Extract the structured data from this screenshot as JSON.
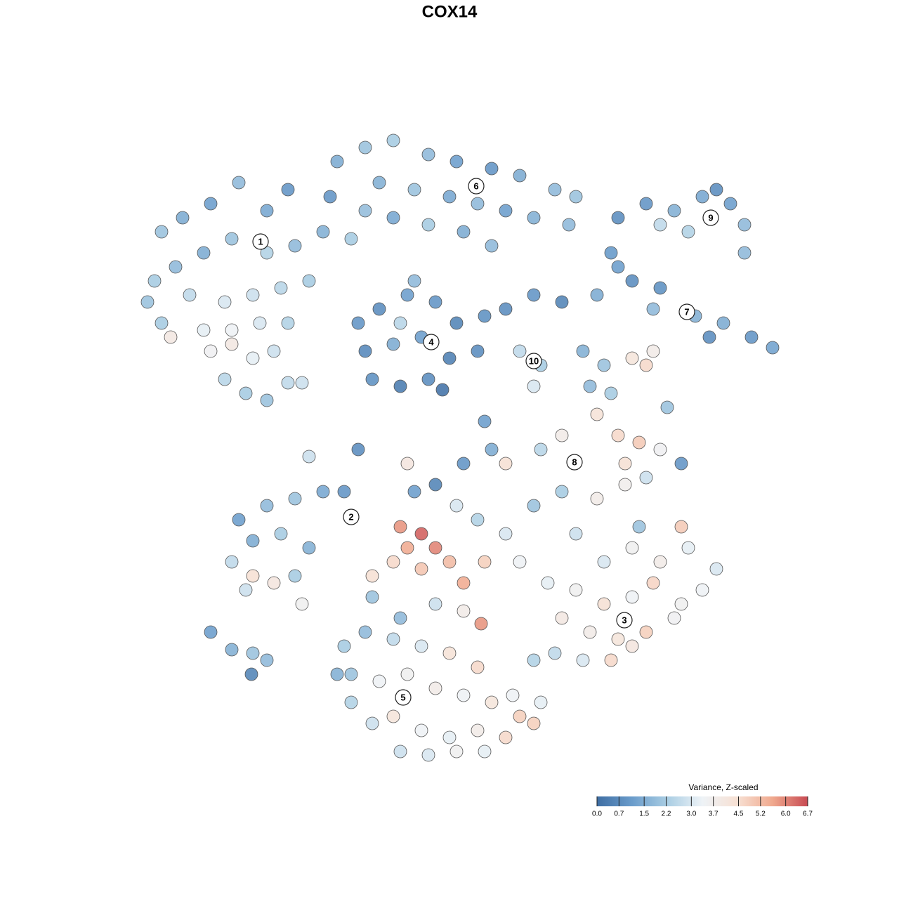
{
  "chart_data": {
    "type": "scatter",
    "title": "COX14",
    "xlim": [
      0,
      128
    ],
    "ylim": [
      0,
      128
    ],
    "series": [
      {
        "name": null,
        "x": [
          23,
          26,
          30,
          34,
          38,
          41,
          22,
          25,
          29,
          33,
          38,
          42,
          46,
          50,
          21,
          27,
          32,
          36,
          40,
          44,
          23,
          29,
          33,
          37,
          41,
          30,
          33,
          36,
          39,
          32,
          35,
          38,
          41,
          24.3,
          43,
          48,
          52,
          56,
          61,
          65,
          70,
          74,
          79,
          82,
          54,
          59,
          64,
          68,
          72,
          76,
          81,
          56,
          61,
          66,
          70,
          47,
          52,
          51,
          54,
          58,
          62,
          65,
          52,
          56,
          60,
          64,
          53,
          57,
          61,
          63,
          59,
          68,
          69,
          57,
          72,
          76,
          80,
          85,
          88,
          90,
          94,
          99,
          103,
          107,
          110,
          101,
          93,
          87,
          88,
          92,
          96,
          100,
          104,
          106,
          98,
          94,
          106,
          102,
          74,
          77,
          76,
          83,
          86,
          84,
          87,
          90,
          92,
          93,
          85,
          88,
          91,
          94,
          97,
          80,
          77,
          89,
          92,
          95,
          89,
          34,
          38,
          42,
          46,
          49,
          36,
          40,
          44,
          33,
          36,
          39,
          42,
          35,
          43,
          30,
          33,
          36,
          38,
          35.8,
          44,
          51,
          57,
          60,
          62,
          58,
          56,
          60,
          64,
          66,
          69,
          53,
          59,
          62,
          66,
          70,
          72,
          69,
          65,
          68,
          58,
          68.5,
          53,
          57,
          62,
          66,
          72,
          76,
          80,
          74,
          78,
          82,
          86,
          90,
          94,
          98,
          102,
          82,
          86,
          90,
          93,
          97,
          80,
          84,
          88,
          92,
          96,
          79,
          83,
          87,
          90,
          76,
          97,
          91,
          100,
          85,
          49,
          52,
          56,
          60,
          64,
          68,
          50,
          54,
          58,
          62,
          66,
          70,
          74,
          76,
          50,
          53,
          56,
          60,
          64,
          68,
          72,
          57,
          61,
          65,
          69,
          48,
          73,
          77
        ],
        "y": [
          95,
          97,
          99,
          102,
          98,
          101,
          88,
          90,
          92,
          94,
          92,
          93,
          95,
          94,
          85,
          86,
          85,
          86,
          87,
          88,
          82,
          81,
          81,
          82,
          82,
          78,
          79,
          77,
          78,
          74,
          72,
          71,
          73.5,
          80,
          73.5,
          105,
          107,
          108,
          106,
          105,
          104,
          103,
          101,
          100,
          102,
          101,
          100,
          99,
          98,
          97,
          96,
          97,
          96,
          95,
          93,
          100,
          98,
          82,
          84,
          86,
          85,
          82,
          78,
          79,
          80,
          77,
          74,
          73,
          74,
          72.5,
          88,
          78,
          83,
          82,
          84,
          86,
          85,
          86,
          90,
          88,
          87,
          83,
          82,
          80,
          78.5,
          80,
          84,
          92,
          97,
          99,
          98,
          100,
          99,
          96,
          95,
          96,
          92,
          101,
          78,
          76,
          73,
          78,
          76,
          73,
          72,
          77,
          76,
          78,
          69,
          66,
          65,
          64,
          62,
          66,
          64,
          62,
          60,
          70,
          59,
          54,
          56,
          57,
          58,
          58,
          51,
          52,
          50,
          48,
          46,
          45,
          46,
          44,
          42,
          38,
          35.5,
          35,
          34,
          32,
          63,
          64,
          53,
          52,
          50,
          50,
          48,
          47,
          48,
          45,
          48,
          46,
          58,
          59,
          62,
          64,
          62,
          68,
          56,
          54,
          62,
          39.2,
          43,
          40,
          42,
          41,
          52,
          56,
          58,
          48,
          45,
          52,
          48,
          50,
          48,
          50,
          47,
          44,
          42,
          43,
          45,
          42,
          40,
          38,
          37,
          38,
          40,
          35,
          34,
          34,
          36,
          34,
          53,
          53,
          44,
          57,
          36,
          38,
          37,
          36,
          35,
          33,
          32,
          31,
          32,
          30,
          29,
          28,
          26,
          25,
          28,
          25,
          26,
          24,
          23,
          24,
          23,
          21,
          20.5,
          21,
          21,
          32,
          29,
          28
        ],
        "values": [
          2.0,
          1.5,
          1.2,
          1.8,
          1.4,
          1.0,
          2.2,
          1.8,
          1.5,
          2.0,
          2.4,
          1.8,
          1.6,
          2.2,
          2.0,
          2.6,
          3.0,
          2.8,
          2.5,
          2.2,
          2.2,
          3.2,
          3.4,
          3.0,
          2.4,
          3.5,
          4.0,
          3.2,
          2.8,
          2.5,
          2.2,
          2.0,
          2.6,
          4.0,
          2.8,
          1.5,
          2.0,
          2.2,
          1.8,
          1.2,
          1.0,
          1.5,
          1.8,
          2.0,
          1.6,
          2.0,
          1.4,
          1.8,
          1.2,
          1.6,
          1.8,
          1.4,
          2.2,
          1.5,
          1.8,
          1.0,
          1.9,
          1.0,
          0.8,
          1.2,
          1.0,
          0.6,
          0.7,
          1.5,
          1.2,
          0.5,
          0.9,
          0.4,
          0.8,
          0.2,
          1.8,
          0.8,
          0.9,
          2.5,
          0.8,
          1.0,
          0.6,
          1.5,
          1.2,
          0.8,
          0.9,
          1.6,
          1.5,
          1.0,
          1.3,
          0.8,
          1.8,
          1.1,
          0.8,
          1.0,
          1.6,
          1.4,
          1.2,
          1.8,
          2.4,
          2.6,
          1.8,
          0.8,
          2.6,
          2.2,
          3.0,
          1.6,
          2.0,
          1.8,
          2.2,
          4.2,
          4.6,
          3.8,
          4.3,
          4.6,
          4.9,
          3.5,
          1.0,
          3.8,
          2.5,
          4.4,
          2.8,
          2.0,
          3.7,
          1.2,
          1.8,
          2.0,
          1.4,
          1.0,
          1.5,
          2.2,
          1.6,
          2.6,
          4.4,
          4.1,
          2.2,
          2.8,
          3.6,
          1.2,
          1.6,
          2.0,
          1.8,
          0.6,
          2.8,
          0.8,
          5.8,
          6.4,
          6.0,
          5.5,
          4.6,
          5.0,
          5.2,
          5.5,
          4.8,
          4.4,
          1.2,
          0.6,
          1.0,
          1.5,
          4.4,
          1.2,
          3.0,
          2.4,
          4.1,
          5.8,
          2.0,
          1.8,
          2.8,
          3.8,
          3.0,
          2.0,
          2.2,
          3.4,
          3.2,
          2.8,
          3.0,
          3.6,
          3.8,
          3.2,
          3.0,
          3.6,
          4.4,
          3.4,
          4.7,
          3.6,
          4.0,
          3.8,
          4.2,
          4.8,
          3.5,
          2.6,
          3.0,
          4.6,
          4.1,
          2.4,
          4.9,
          2.0,
          3.4,
          3.8,
          2.2,
          1.8,
          2.6,
          3.0,
          4.3,
          4.6,
          2.0,
          3.4,
          3.6,
          3.8,
          3.4,
          4.2,
          4.8,
          4.8,
          2.4,
          2.8,
          4.2,
          3.4,
          3.2,
          3.8,
          4.6,
          2.8,
          3.0,
          3.6,
          3.2,
          1.6,
          3.4,
          3.2
        ]
      }
    ],
    "cluster_labels": [
      {
        "label": "1",
        "x": 37.1,
        "y": 93.6
      },
      {
        "label": "2",
        "x": 50,
        "y": 54.4
      },
      {
        "label": "3",
        "x": 88.9,
        "y": 39.7
      },
      {
        "label": "4",
        "x": 61.4,
        "y": 79.3
      },
      {
        "label": "5",
        "x": 57.4,
        "y": 28.7
      },
      {
        "label": "6",
        "x": 67.8,
        "y": 101.5
      },
      {
        "label": "7",
        "x": 97.8,
        "y": 83.6
      },
      {
        "label": "8",
        "x": 81.8,
        "y": 62.2
      },
      {
        "label": "9",
        "x": 101.2,
        "y": 97
      },
      {
        "label": "10",
        "x": 76,
        "y": 76.6
      }
    ],
    "colorbar": {
      "title": "Variance, Z-scaled",
      "lim": [
        0,
        6.7
      ],
      "ticks": [
        {
          "value": 0,
          "label": "0.0"
        },
        0.7,
        1.5,
        2.2,
        {
          "value": 3,
          "label": "3.0"
        },
        3.7,
        4.5,
        5.2,
        {
          "value": 6,
          "label": "6.0"
        },
        6.7
      ],
      "colors": [
        "#3f6ea3",
        "#6a9ccb",
        "#a9cde3",
        "#eef3f7",
        "#f7e0d3",
        "#f0a98e",
        "#c84a52"
      ]
    }
  }
}
